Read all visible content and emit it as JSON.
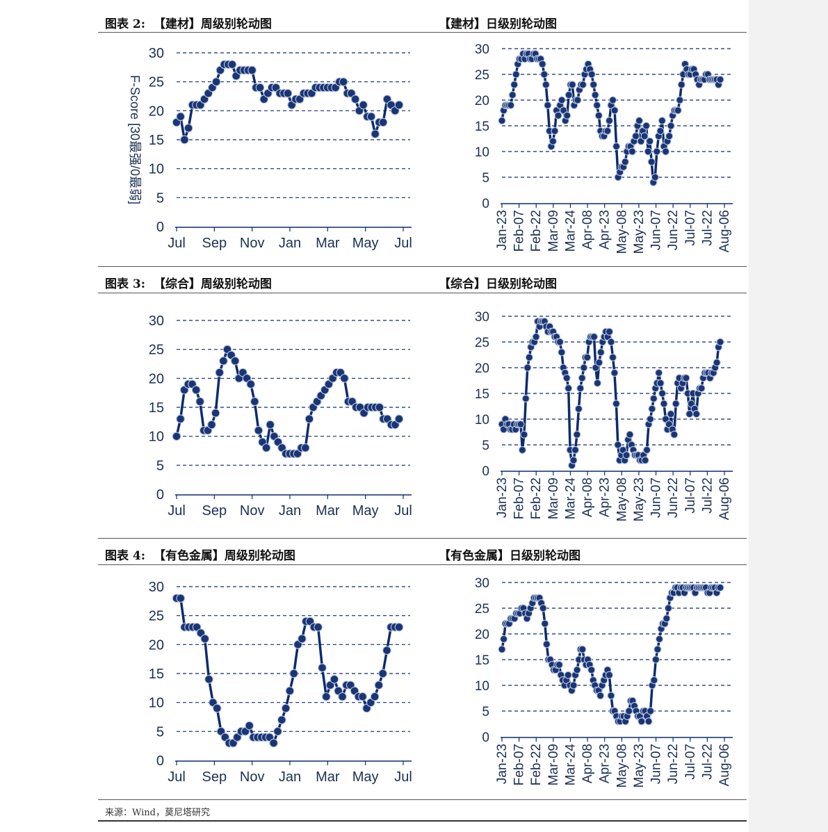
{
  "sidebar_color": "#f2f2f2",
  "colors": {
    "line": "#0d2b6e",
    "marker": "#1a3575",
    "marker_edge": "#b9c6dd",
    "grid": "#0d2b6e",
    "text": "#1c2f55"
  },
  "titles": {
    "r1_left": "图表 2:  【建材】周级别轮动图",
    "r1_right": "【建材】日级别轮动图",
    "r2_left": "图表 3:  【综合】周级别轮动图",
    "r2_right": "【综合】日级别轮动图",
    "r3_left": "图表 4:  【有色金属】周级别轮动图",
    "r3_right": "【有色金属】日级别轮动图"
  },
  "footer": "来源：Wind，莫尼塔研究",
  "chart_data": [
    {
      "id": "weekly-jiancai",
      "type": "line",
      "ylabel": "F-Score [30最强/0最弱]",
      "ylim": [
        0,
        30
      ],
      "yticks": [
        0,
        5,
        10,
        15,
        20,
        25,
        30
      ],
      "x_tick_labels": [
        "Jul",
        "Sep",
        "Nov",
        "Jan",
        "Mar",
        "May",
        "Jul"
      ],
      "grid": "horizontal-dashed",
      "series": [
        {
          "values": [
            18,
            19,
            15,
            17,
            21,
            21,
            21,
            22,
            23,
            24,
            25,
            27,
            28,
            28,
            28,
            26,
            27,
            27,
            27,
            27,
            24,
            24,
            22,
            23,
            24,
            24,
            23,
            23,
            23,
            21,
            22,
            22,
            23,
            23,
            23,
            24,
            24,
            24,
            24,
            24,
            24,
            25,
            25,
            23,
            23,
            22,
            20,
            21,
            19,
            19,
            16,
            18,
            18,
            22,
            21,
            20,
            21
          ]
        }
      ]
    },
    {
      "id": "daily-jiancai",
      "type": "line",
      "ylim": [
        0,
        30
      ],
      "yticks": [
        0,
        5,
        10,
        15,
        20,
        25,
        30
      ],
      "x_tick_labels": [
        "Jan-23",
        "Feb-07",
        "Feb-22",
        "Mar-09",
        "Mar-24",
        "Apr-08",
        "Apr-23",
        "May-08",
        "May-23",
        "Jun-07",
        "Jun-22",
        "Jul-07",
        "Jul-22",
        "Aug-06"
      ],
      "grid": "horizontal-dashed",
      "series": [
        {
          "values": [
            16,
            18,
            19,
            19,
            19,
            19,
            21,
            23,
            25,
            27,
            28,
            28,
            29,
            28,
            29,
            29,
            28,
            28,
            29,
            29,
            28,
            28,
            28,
            27,
            25,
            23,
            19,
            14,
            11,
            12,
            14,
            18,
            17,
            19,
            20,
            18,
            16,
            17,
            21,
            23,
            23,
            19,
            20,
            20,
            22,
            23,
            23,
            25,
            26,
            27,
            26,
            25,
            23,
            21,
            19,
            17,
            14,
            13,
            13,
            14,
            14,
            16,
            19,
            20,
            18,
            11,
            5,
            6,
            7,
            7,
            8,
            10,
            11,
            11,
            10,
            12,
            13,
            15,
            16,
            12,
            14,
            13,
            15,
            10,
            12,
            8,
            4,
            5,
            10,
            13,
            14,
            16,
            11,
            10,
            12,
            13,
            15,
            17,
            18,
            18,
            18,
            20,
            23,
            25,
            27,
            26,
            25,
            25,
            26,
            26,
            25,
            24,
            23,
            24,
            24,
            24,
            25,
            25,
            24,
            24,
            24,
            24,
            24,
            23,
            24
          ]
        }
      ]
    },
    {
      "id": "weekly-zonghe",
      "type": "line",
      "ylim": [
        0,
        30
      ],
      "yticks": [
        0,
        5,
        10,
        15,
        20,
        25,
        30
      ],
      "x_tick_labels": [
        "Jul",
        "Sep",
        "Nov",
        "Jan",
        "Mar",
        "May",
        "Jul"
      ],
      "grid": "horizontal-dashed",
      "series": [
        {
          "values": [
            10,
            13,
            18,
            19,
            19,
            18,
            16,
            11,
            11,
            12,
            14,
            21,
            23,
            25,
            24,
            23,
            20,
            21,
            20,
            19,
            16,
            11,
            9,
            8,
            12,
            10,
            9,
            8,
            7,
            7,
            7,
            7,
            8,
            8,
            13,
            15,
            16,
            17,
            18,
            19,
            20,
            21,
            21,
            20,
            16,
            16,
            15,
            15,
            14,
            15,
            15,
            15,
            15,
            13,
            13,
            12,
            12,
            13
          ]
        }
      ]
    },
    {
      "id": "daily-zonghe",
      "type": "line",
      "ylim": [
        0,
        30
      ],
      "yticks": [
        0,
        5,
        10,
        15,
        20,
        25,
        30
      ],
      "x_tick_labels": [
        "Jan-23",
        "Feb-07",
        "Feb-22",
        "Mar-09",
        "Mar-24",
        "Apr-08",
        "Apr-23",
        "May-08",
        "May-23",
        "Jun-07",
        "Jun-22",
        "Jul-07",
        "Jul-22",
        "Aug-06"
      ],
      "grid": "horizontal-dashed",
      "series": [
        {
          "values": [
            9,
            8,
            10,
            9,
            9,
            8,
            8,
            9,
            8,
            9,
            9,
            9,
            4,
            7,
            14,
            20,
            22,
            24,
            25,
            25,
            26,
            29,
            28,
            29,
            29,
            29,
            28,
            27,
            28,
            27,
            27,
            26,
            26,
            25,
            25,
            23,
            20,
            19,
            18,
            16,
            4,
            1,
            2,
            4,
            7,
            12,
            16,
            18,
            20,
            22,
            22,
            25,
            26,
            26,
            26,
            20,
            17,
            21,
            23,
            25,
            26,
            27,
            26,
            27,
            25,
            22,
            19,
            13,
            5,
            2,
            3,
            4,
            2,
            3,
            6,
            7,
            5,
            4,
            3,
            3,
            3,
            2,
            2,
            3,
            2,
            4,
            9,
            10,
            12,
            14,
            16,
            17,
            19,
            17,
            15,
            13,
            10,
            8,
            9,
            11,
            8,
            7,
            13,
            17,
            18,
            16,
            17,
            18,
            18,
            15,
            11,
            13,
            15,
            12,
            11,
            15,
            16,
            16,
            18,
            19,
            19,
            19,
            18,
            19,
            19,
            20,
            21,
            24,
            25
          ]
        }
      ]
    },
    {
      "id": "weekly-youse",
      "type": "line",
      "ylim": [
        0,
        30
      ],
      "yticks": [
        0,
        5,
        10,
        15,
        20,
        25,
        30
      ],
      "x_tick_labels": [
        "Jul",
        "Sep",
        "Nov",
        "Jan",
        "Mar",
        "May",
        "Jul"
      ],
      "grid": "horizontal-dashed",
      "series": [
        {
          "values": [
            28,
            28,
            23,
            23,
            23,
            23,
            22,
            21,
            14,
            10,
            9,
            5,
            4,
            3,
            3,
            4,
            5,
            5,
            6,
            4,
            4,
            4,
            4,
            4,
            3,
            5,
            7,
            9,
            12,
            15,
            20,
            21,
            24,
            24,
            23,
            23,
            16,
            11,
            13,
            14,
            12,
            11,
            13,
            13,
            12,
            11,
            11,
            9,
            10,
            11,
            13,
            15,
            19,
            23,
            23,
            23
          ]
        }
      ]
    },
    {
      "id": "daily-youse",
      "type": "line",
      "ylim": [
        0,
        30
      ],
      "yticks": [
        0,
        5,
        10,
        15,
        20,
        25,
        30
      ],
      "x_tick_labels": [
        "Jan-23",
        "Feb-07",
        "Feb-22",
        "Mar-09",
        "Mar-24",
        "Apr-08",
        "Apr-23",
        "May-08",
        "May-23",
        "Jun-07",
        "Jun-22",
        "Jul-07",
        "Jul-22",
        "Aug-06"
      ],
      "grid": "horizontal-dashed",
      "series": [
        {
          "values": [
            17,
            19,
            22,
            22,
            22,
            23,
            23,
            23,
            24,
            24,
            24,
            25,
            25,
            24,
            23,
            24,
            25,
            26,
            27,
            27,
            27,
            27,
            26,
            25,
            22,
            18,
            15,
            15,
            14,
            13,
            13,
            14,
            14,
            12,
            11,
            10,
            11,
            12,
            10,
            9,
            10,
            12,
            13,
            15,
            17,
            17,
            15,
            14,
            15,
            14,
            13,
            11,
            10,
            9,
            9,
            8,
            10,
            11,
            12,
            13,
            12,
            8,
            5,
            5,
            4,
            3,
            3,
            4,
            4,
            3,
            4,
            5,
            7,
            7,
            6,
            5,
            4,
            4,
            3,
            5,
            5,
            4,
            3,
            5,
            10,
            11,
            15,
            17,
            19,
            21,
            22,
            22,
            23,
            25,
            27,
            28,
            28,
            29,
            29,
            28,
            29,
            29,
            28,
            29,
            29,
            29,
            29,
            29,
            28,
            29,
            29,
            29,
            29,
            29,
            29,
            28,
            28,
            29,
            29,
            29,
            28,
            29,
            29
          ]
        }
      ]
    }
  ]
}
